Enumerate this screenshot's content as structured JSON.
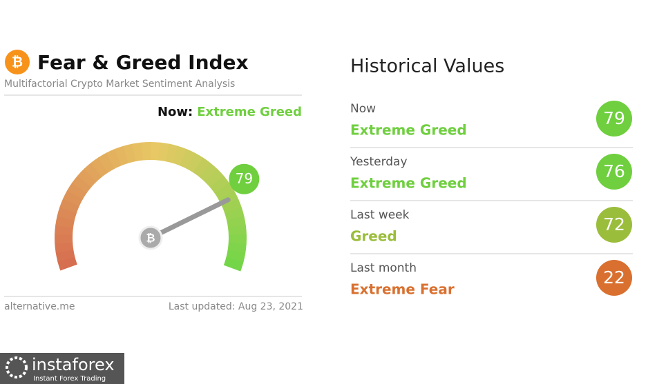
{
  "header": {
    "title": "Fear & Greed Index",
    "subtitle": "Multifactorial Crypto Market Sentiment Analysis"
  },
  "now": {
    "label": "Now:",
    "classification": "Extreme Greed",
    "value": 79,
    "color": "#6fcf3f",
    "scale": [
      0,
      100
    ]
  },
  "footer": {
    "source": "alternative.me",
    "updated": "Last updated: Aug 23, 2021"
  },
  "history": {
    "title": "Historical Values",
    "rows": [
      {
        "period": "Now",
        "classification": "Extreme Greed",
        "value": 79,
        "color": "#6fcf3f"
      },
      {
        "period": "Yesterday",
        "classification": "Extreme Greed",
        "value": 76,
        "color": "#6fcf3f"
      },
      {
        "period": "Last week",
        "classification": "Greed",
        "value": 72,
        "color": "#9bbd3c"
      },
      {
        "period": "Last month",
        "classification": "Extreme Fear",
        "value": 22,
        "color": "#d9702f"
      }
    ]
  },
  "watermark": {
    "brand": "instaforex",
    "tagline": "Instant Forex Trading"
  }
}
